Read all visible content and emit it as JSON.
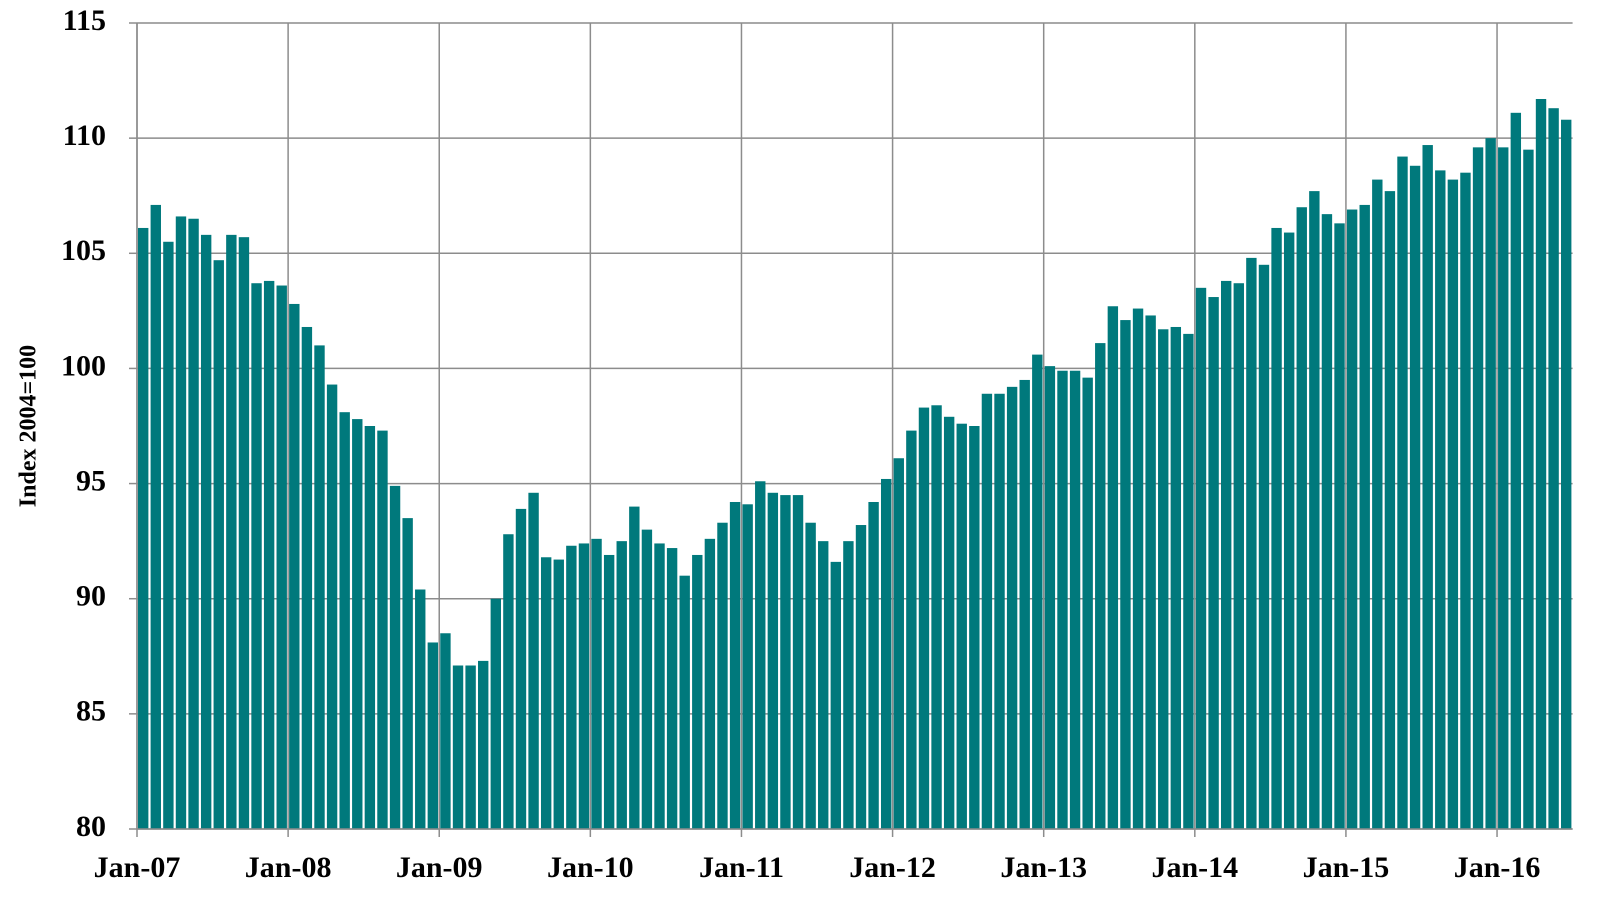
{
  "chart_data": {
    "type": "bar",
    "y_label": "Index 2004=100",
    "categories": [
      "Jan-07",
      null,
      null,
      null,
      null,
      null,
      null,
      null,
      null,
      null,
      null,
      null,
      "Jan-08",
      null,
      null,
      null,
      null,
      null,
      null,
      null,
      null,
      null,
      null,
      null,
      "Jan-09",
      null,
      null,
      null,
      null,
      null,
      null,
      null,
      null,
      null,
      null,
      null,
      "Jan-10",
      null,
      null,
      null,
      null,
      null,
      null,
      null,
      null,
      null,
      null,
      null,
      "Jan-11",
      null,
      null,
      null,
      null,
      null,
      null,
      null,
      null,
      null,
      null,
      null,
      "Jan-12",
      null,
      null,
      null,
      null,
      null,
      null,
      null,
      null,
      null,
      null,
      null,
      "Jan-13",
      null,
      null,
      null,
      null,
      null,
      null,
      null,
      null,
      null,
      null,
      null,
      "Jan-14",
      null,
      null,
      null,
      null,
      null,
      null,
      null,
      null,
      null,
      null,
      null,
      "Jan-15",
      null,
      null,
      null,
      null,
      null,
      null,
      null,
      null,
      null,
      null,
      null,
      "Jan-16",
      null,
      null,
      null,
      null,
      null
    ],
    "values": [
      106.1,
      107.1,
      105.5,
      106.6,
      106.5,
      105.8,
      104.7,
      105.8,
      105.7,
      103.7,
      103.8,
      103.6,
      102.8,
      101.8,
      101.0,
      99.3,
      98.1,
      97.8,
      97.5,
      97.3,
      94.9,
      93.5,
      90.4,
      88.1,
      88.5,
      87.1,
      87.1,
      87.3,
      90.0,
      92.8,
      93.9,
      94.6,
      91.8,
      91.7,
      92.3,
      92.4,
      92.6,
      91.9,
      92.5,
      94.0,
      93.0,
      92.4,
      92.2,
      91.0,
      91.9,
      92.6,
      93.3,
      94.2,
      94.1,
      95.1,
      94.6,
      94.5,
      94.5,
      93.3,
      92.5,
      91.6,
      92.5,
      93.2,
      94.2,
      95.2,
      96.1,
      97.3,
      98.3,
      98.4,
      97.9,
      97.6,
      97.5,
      98.9,
      98.9,
      99.2,
      99.5,
      100.6,
      100.1,
      99.9,
      99.9,
      99.6,
      101.1,
      102.7,
      102.1,
      102.6,
      102.3,
      101.7,
      101.8,
      101.5,
      103.5,
      103.1,
      103.8,
      103.7,
      104.8,
      104.5,
      106.1,
      105.9,
      107.0,
      107.7,
      106.7,
      106.3,
      106.9,
      107.1,
      108.2,
      107.7,
      109.2,
      108.8,
      109.7,
      108.6,
      108.2,
      108.5,
      109.6,
      110.0,
      109.6,
      111.1,
      109.5,
      111.7,
      111.3,
      110.8
    ],
    "color": "#00797c",
    "ylim": [
      80,
      115
    ],
    "yticks": [
      80,
      85,
      90,
      95,
      100,
      105,
      110,
      115
    ],
    "grid": true
  }
}
